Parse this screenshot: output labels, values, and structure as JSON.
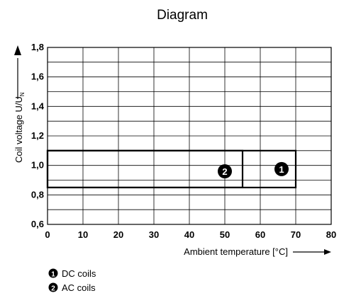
{
  "chart_data": {
    "type": "area",
    "title": "Diagram",
    "xlabel": "Ambient temperature [°C]",
    "ylabel": "Coil voltage U/U",
    "ylabel_subscript": "N",
    "x_ticks": [
      "0",
      "10",
      "20",
      "30",
      "40",
      "50",
      "60",
      "70",
      "80"
    ],
    "y_ticks": [
      "0,6",
      "0,8",
      "1,0",
      "1,2",
      "1,4",
      "1,6",
      "1,8"
    ],
    "xlim": [
      0,
      80
    ],
    "ylim": [
      0.6,
      1.8
    ],
    "grid": true,
    "series": [
      {
        "marker": "1",
        "name": "DC coils",
        "x_range": [
          0,
          70
        ],
        "y_range": [
          0.85,
          1.1
        ]
      },
      {
        "marker": "2",
        "name": "AC coils",
        "x_range": [
          0,
          55
        ],
        "y_range": [
          0.85,
          1.1
        ]
      }
    ],
    "legend": [
      {
        "marker": "1",
        "label": "DC coils"
      },
      {
        "marker": "2",
        "label": "AC coils"
      }
    ],
    "legend_position": "bottom-left"
  }
}
